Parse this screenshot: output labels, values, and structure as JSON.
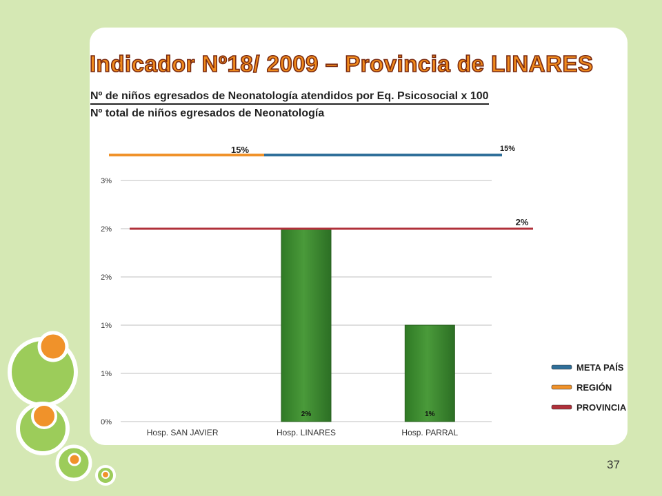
{
  "slide": {
    "title": "Indicador Nº18/ 2009 – Provincia de LINARES",
    "formula_numerator": "Nº de niños egresados de Neonatología atendidos por Eq. Psicosocial x 100",
    "formula_denominator": "Nº total de niños egresados de Neonatología",
    "page_number": "37"
  },
  "colors": {
    "background": "#d5e8b4",
    "bar": "#4a9a3a",
    "meta_pais": "#2f6f9a",
    "region": "#f0922a",
    "provincia": "#b0303a",
    "title": "#f08a1c"
  },
  "chart_data": {
    "type": "bar",
    "categories": [
      "Hosp. SAN JAVIER",
      "Hosp. LINARES",
      "Hosp. PARRAL"
    ],
    "values": [
      0,
      2,
      1
    ],
    "data_labels": [
      "",
      "2%",
      "1%"
    ],
    "ylim": [
      0,
      2.5
    ],
    "yticks": [
      0,
      0.5,
      1,
      1.5,
      2,
      2.5
    ],
    "ytick_labels": [
      "0%",
      "1%",
      "1%",
      "2%",
      "2%",
      "3%"
    ],
    "grid": true,
    "reference_lines": [
      {
        "name": "META PAÍS",
        "value": 15,
        "label": "15%",
        "color": "#2f6f9a"
      },
      {
        "name": "REGIÓN",
        "value": 15,
        "label": "15%",
        "color": "#f0922a"
      },
      {
        "name": "PROVINCIA",
        "value": 2,
        "label": "2%",
        "color": "#b0303a"
      }
    ],
    "legend": [
      "META PAÍS",
      "REGIÓN",
      "PROVINCIA"
    ],
    "legend_position": "right"
  }
}
